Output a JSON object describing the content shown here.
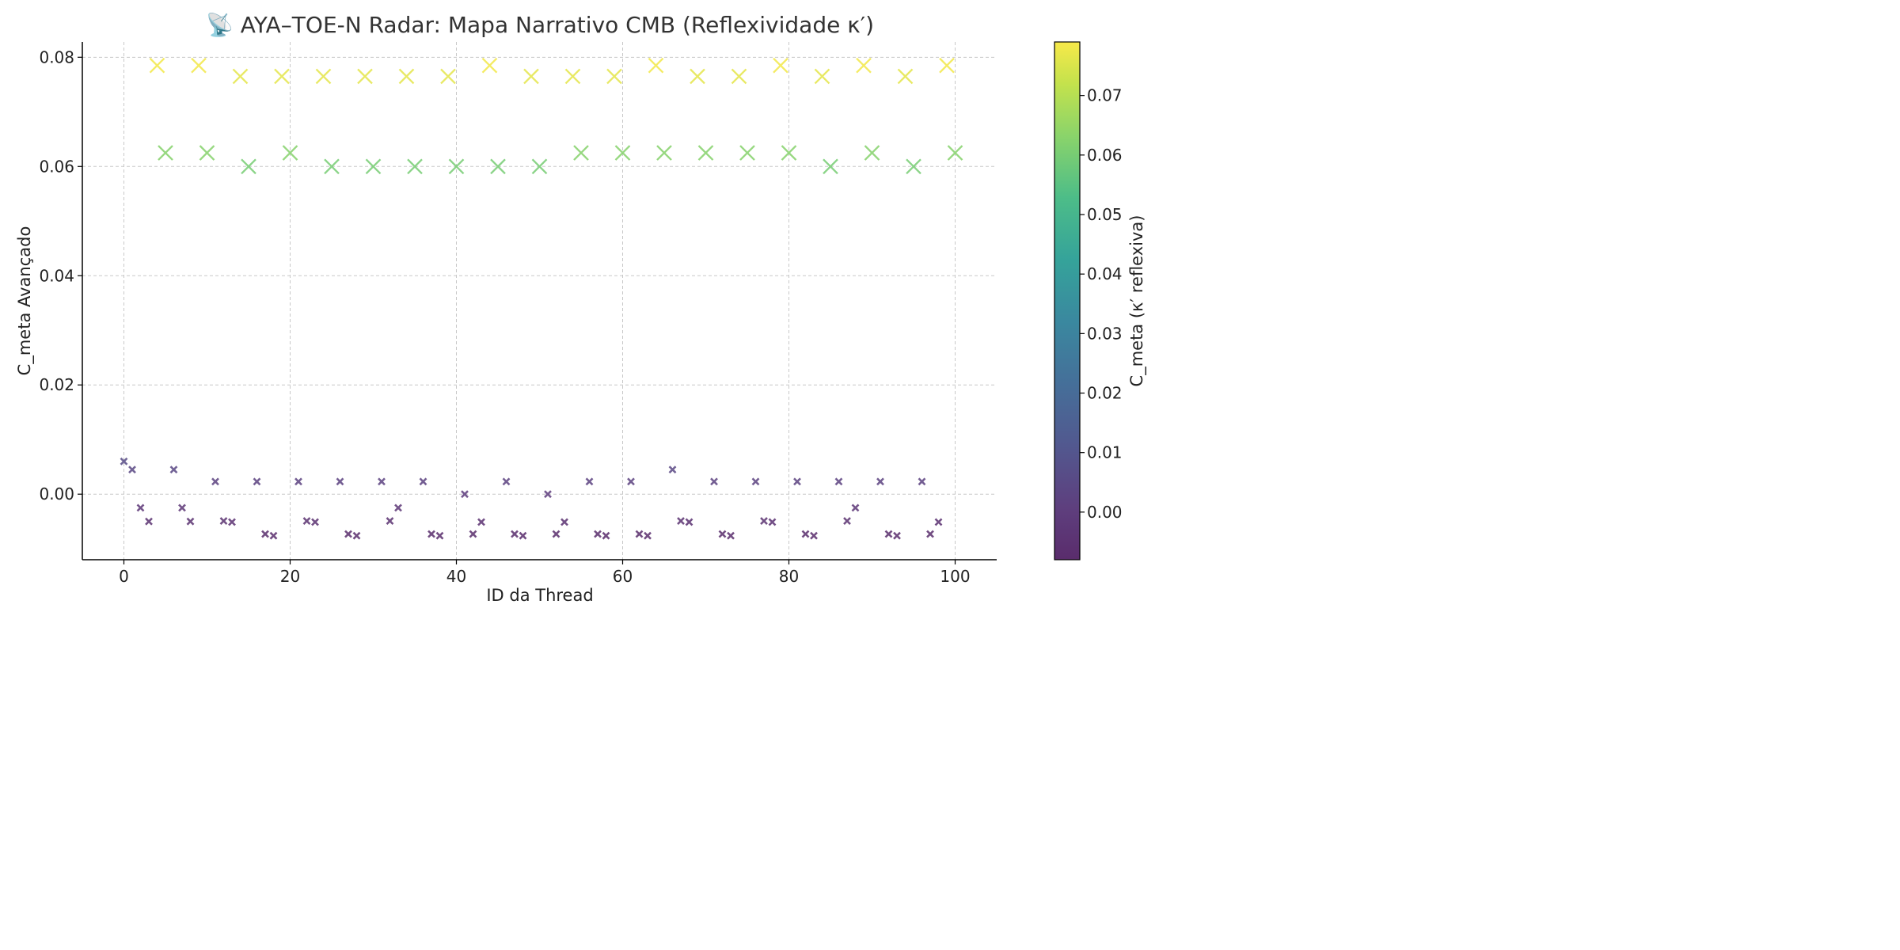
{
  "chart_data": {
    "type": "scatter",
    "title": "📡 AYA–TOE-N Radar: Mapa Narrativo CMB (Reflexividade κ′)",
    "xlabel": "ID da Thread",
    "ylabel": "C_meta Avançado",
    "xlim": [
      -5,
      105
    ],
    "ylim": [
      -0.012,
      0.0828
    ],
    "xticks": [
      0,
      20,
      40,
      60,
      80,
      100
    ],
    "yticks": [
      0.0,
      0.02,
      0.04,
      0.06,
      0.08
    ],
    "xtick_labels": [
      "0",
      "20",
      "40",
      "60",
      "80",
      "100"
    ],
    "ytick_labels": [
      "0.00",
      "0.02",
      "0.04",
      "0.06",
      "0.08"
    ],
    "grid": true,
    "marker": "x",
    "colormap": "viridis",
    "colorbar": {
      "label": "C_meta (κ′ reflexiva)",
      "range": [
        -0.008,
        0.079
      ],
      "ticks": [
        0.0,
        0.01,
        0.02,
        0.03,
        0.04,
        0.05,
        0.06,
        0.07
      ],
      "tick_labels": [
        "0.00",
        "0.01",
        "0.02",
        "0.03",
        "0.04",
        "0.05",
        "0.06",
        "0.07"
      ]
    },
    "x": [
      0,
      1,
      2,
      3,
      4,
      5,
      6,
      7,
      8,
      9,
      10,
      11,
      12,
      13,
      14,
      15,
      16,
      17,
      18,
      19,
      20,
      21,
      22,
      23,
      24,
      25,
      26,
      27,
      28,
      29,
      30,
      31,
      32,
      33,
      34,
      35,
      36,
      37,
      38,
      39,
      40,
      41,
      42,
      43,
      44,
      45,
      46,
      47,
      48,
      49,
      50,
      51,
      52,
      53,
      54,
      55,
      56,
      57,
      58,
      59,
      60,
      61,
      62,
      63,
      64,
      65,
      66,
      67,
      68,
      69,
      70,
      71,
      72,
      73,
      74,
      75,
      76,
      77,
      78,
      79,
      80,
      81,
      82,
      83,
      84,
      85,
      86,
      87,
      88,
      89,
      90,
      91,
      92,
      93,
      94,
      95,
      96,
      97,
      98,
      99,
      100
    ],
    "y": [
      0.006,
      0.0045,
      -0.0025,
      -0.005,
      0.0785,
      0.0625,
      0.0045,
      -0.0025,
      -0.005,
      0.0785,
      0.0625,
      0.0023,
      -0.0049,
      -0.0051,
      0.0765,
      0.06,
      0.0023,
      -0.0073,
      -0.0076,
      0.0765,
      0.0625,
      0.0023,
      -0.0049,
      -0.0051,
      0.0765,
      0.06,
      0.0023,
      -0.0073,
      -0.0076,
      0.0765,
      0.06,
      0.0023,
      -0.0049,
      -0.0025,
      0.0765,
      0.06,
      0.0023,
      -0.0073,
      -0.0076,
      0.0765,
      0.06,
      0.0,
      -0.0073,
      -0.0051,
      0.0785,
      0.06,
      0.0023,
      -0.0073,
      -0.0076,
      0.0765,
      0.06,
      0.0,
      -0.0073,
      -0.0051,
      0.0765,
      0.0625,
      0.0023,
      -0.0073,
      -0.0076,
      0.0765,
      0.0625,
      0.0023,
      -0.0073,
      -0.0076,
      0.0785,
      0.0625,
      0.0045,
      -0.0049,
      -0.0051,
      0.0765,
      0.0625,
      0.0023,
      -0.0073,
      -0.0076,
      0.0765,
      0.0625,
      0.0023,
      -0.0049,
      -0.0051,
      0.0785,
      0.0625,
      0.0023,
      -0.0073,
      -0.0076,
      0.0765,
      0.06,
      0.0023,
      -0.0049,
      -0.0025,
      0.0785,
      0.0625,
      0.0023,
      -0.0073,
      -0.0076,
      0.0765,
      0.06,
      0.0023,
      -0.0073,
      -0.0051,
      0.0785,
      0.0625
    ]
  }
}
